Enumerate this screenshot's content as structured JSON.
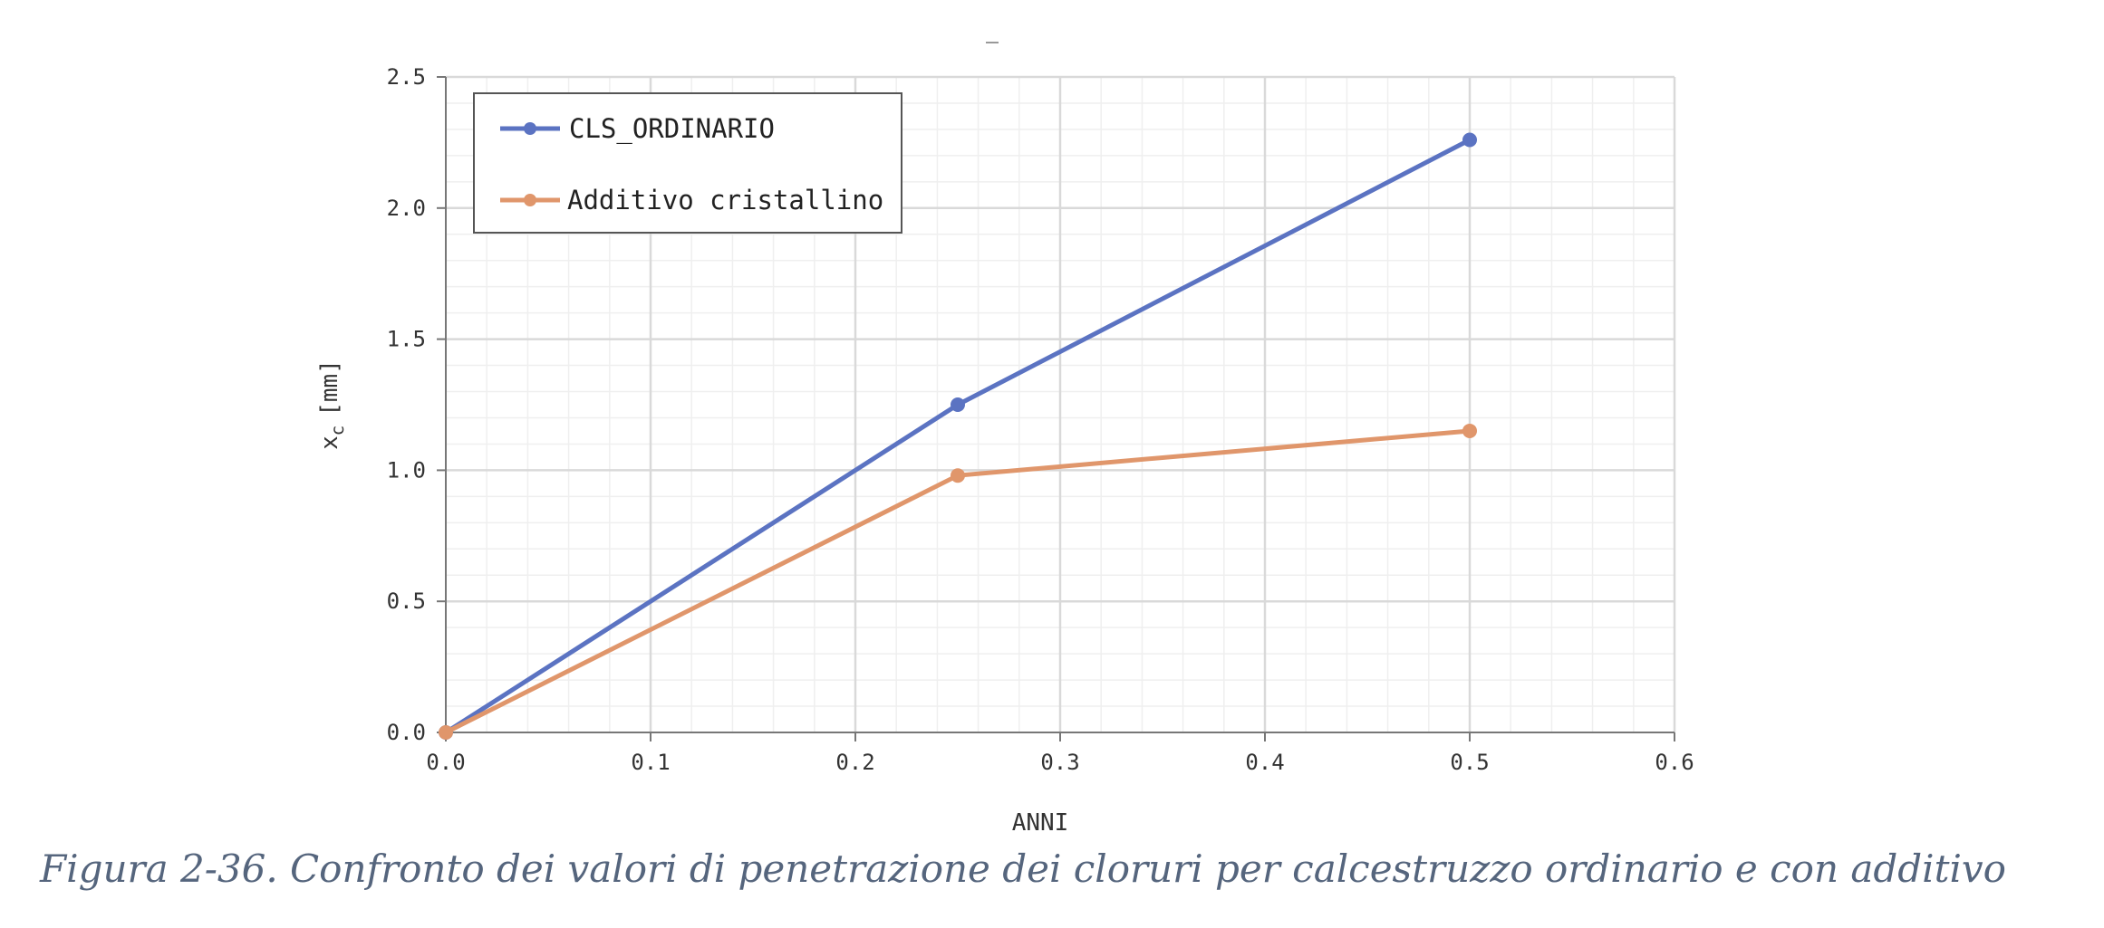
{
  "chart_data": {
    "type": "line",
    "title": "",
    "xlabel": "ANNI",
    "ylabel": "x_c [mm]",
    "ylabel_main": "x",
    "ylabel_sub": "c",
    "ylabel_unit": "[mm]",
    "xlim": [
      0,
      0.6
    ],
    "ylim": [
      0,
      2.5
    ],
    "x_ticks": [
      "0.0",
      "0.1",
      "0.2",
      "0.3",
      "0.4",
      "0.5",
      "0.6"
    ],
    "y_ticks": [
      "0.0",
      "0.5",
      "1.0",
      "1.5",
      "2.0",
      "2.5"
    ],
    "grid": true,
    "legend_position": "top-left",
    "series": [
      {
        "name": "CLS_ORDINARIO",
        "color": "#5b73c2",
        "x": [
          0,
          0.25,
          0.5
        ],
        "y": [
          0,
          1.25,
          2.26
        ]
      },
      {
        "name": "Additivo cristallino",
        "color": "#e0966b",
        "x": [
          0,
          0.25,
          0.5
        ],
        "y": [
          0,
          0.98,
          1.15
        ]
      }
    ]
  },
  "caption": "Figura 2-36. Confronto dei valori di penetrazione dei cloruri per calcestruzzo ordinario e con additivo"
}
